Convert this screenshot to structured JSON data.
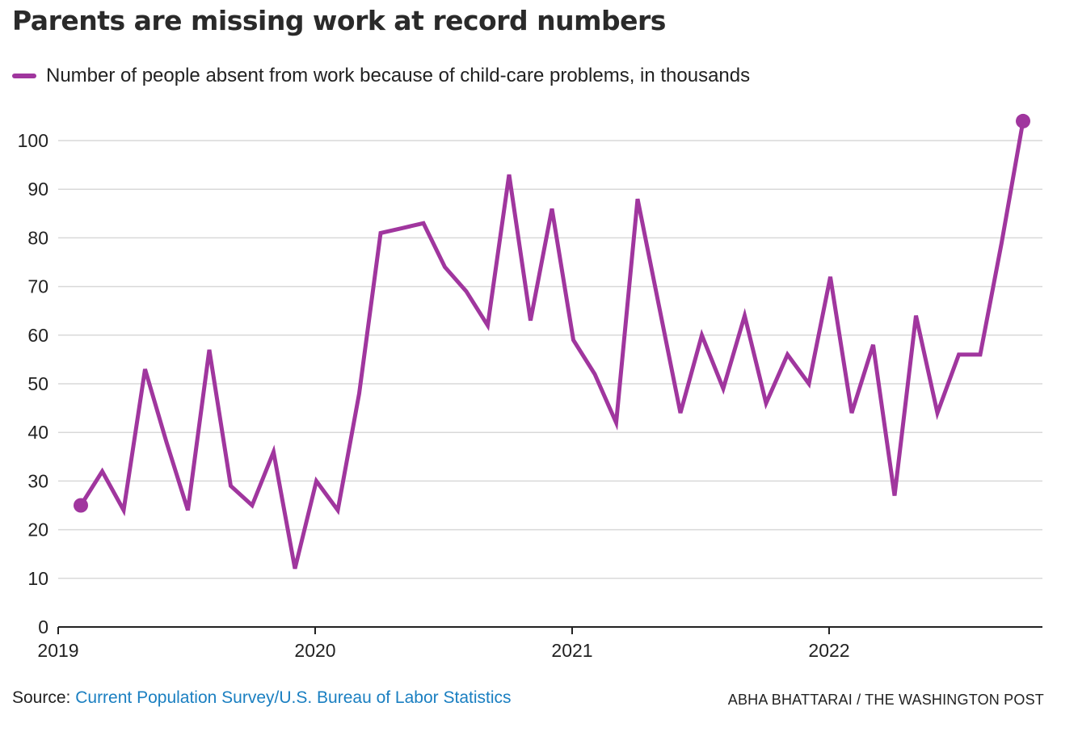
{
  "chart_data": {
    "type": "line",
    "title": "Parents are missing work at record numbers",
    "legend": "Number of people absent from work because of child-care problems, in thousands",
    "series": [
      {
        "name": "Number of people absent from work because of child-care problems, in thousands",
        "color": "#a0369e",
        "x": [
          "2019-01",
          "2019-02",
          "2019-03",
          "2019-04",
          "2019-05",
          "2019-06",
          "2019-07",
          "2019-08",
          "2019-09",
          "2019-10",
          "2019-11",
          "2019-12",
          "2020-01",
          "2020-02",
          "2020-03",
          "2020-04",
          "2020-05",
          "2020-06",
          "2020-07",
          "2020-08",
          "2020-09",
          "2020-10",
          "2020-11",
          "2020-12",
          "2021-01",
          "2021-02",
          "2021-03",
          "2021-04",
          "2021-05",
          "2021-06",
          "2021-07",
          "2021-08",
          "2021-09",
          "2021-10",
          "2021-11",
          "2021-12",
          "2022-01",
          "2022-02",
          "2022-03",
          "2022-04",
          "2022-05",
          "2022-06",
          "2022-07",
          "2022-08",
          "2022-09",
          "2022-10"
        ],
        "values": [
          25,
          32,
          24,
          53,
          38,
          24,
          57,
          29,
          25,
          36,
          12,
          30,
          24,
          48,
          81,
          82,
          83,
          74,
          69,
          62,
          93,
          63,
          86,
          59,
          52,
          42,
          88,
          66,
          44,
          60,
          49,
          64,
          46,
          56,
          50,
          72,
          44,
          58,
          27,
          64,
          44,
          56,
          56,
          79,
          104,
          null
        ]
      }
    ],
    "x_tick_labels": [
      "2019",
      "2020",
      "2021",
      "2022"
    ],
    "y_ticks": [
      0,
      10,
      20,
      30,
      40,
      50,
      60,
      70,
      80,
      90,
      100
    ],
    "ylim": [
      0,
      105
    ],
    "grid": "horizontal",
    "legend_position": "top-left",
    "highlighted_points": [
      "first",
      "last"
    ]
  },
  "source_label": "Source: ",
  "source_text": "Current Population Survey/U.S. Bureau of Labor Statistics",
  "credit": "ABHA BHATTARAI / THE WASHINGTON POST"
}
